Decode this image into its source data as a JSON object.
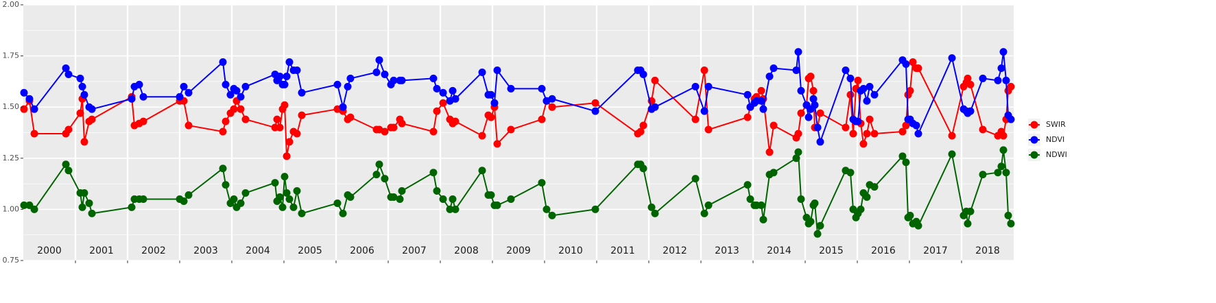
{
  "chart_data": {
    "type": "line",
    "xlim": [
      2000,
      2019
    ],
    "xticks": [
      2001,
      2002,
      2003,
      2004,
      2005,
      2006,
      2007,
      2008,
      2009,
      2010,
      2011,
      2012,
      2013,
      2014,
      2015,
      2016,
      2017,
      2018
    ],
    "year_labels": [
      "2000",
      "2001",
      "2002",
      "2003",
      "2004",
      "2005",
      "2006",
      "2007",
      "2008",
      "2009",
      "2010",
      "2011",
      "2012",
      "2013",
      "2014",
      "2015",
      "2016",
      "2017",
      "2018"
    ],
    "ylim": [
      0.75,
      2.0
    ],
    "yticks": [
      {
        "value": 0.75,
        "label": "0.75"
      },
      {
        "value": 1.0,
        "label": "1.00"
      },
      {
        "value": 1.25,
        "label": "1.25"
      },
      {
        "value": 1.5,
        "label": "1.50"
      },
      {
        "value": 1.75,
        "label": "1.75"
      },
      {
        "value": 2.0,
        "label": "2.00"
      }
    ],
    "grid": true,
    "legend": "right",
    "x": [
      2000.013,
      2000.118,
      2000.211,
      2000.816,
      2000.868,
      2001.092,
      2001.132,
      2001.171,
      2001.263,
      2001.316,
      2002.079,
      2002.132,
      2002.224,
      2002.303,
      2003.0,
      2003.079,
      2003.171,
      2003.829,
      2003.882,
      2003.974,
      2004.039,
      2004.092,
      2004.171,
      2004.263,
      2004.829,
      2004.868,
      2004.921,
      2004.974,
      2005.013,
      2005.053,
      2005.105,
      2005.184,
      2005.25,
      2005.342,
      2006.026,
      2006.132,
      2006.224,
      2006.276,
      2006.776,
      2006.829,
      2006.934,
      2007.053,
      2007.105,
      2007.224,
      2007.263,
      2007.868,
      2007.934,
      2008.053,
      2008.184,
      2008.237,
      2008.289,
      2008.803,
      2008.921,
      2008.974,
      2009.039,
      2009.092,
      2009.355,
      2009.947,
      2010.039,
      2010.145,
      2010.974,
      2011.789,
      2011.842,
      2011.895,
      2012.053,
      2012.118,
      2012.895,
      2013.066,
      2013.145,
      2013.895,
      2013.947,
      2014.026,
      2014.066,
      2014.158,
      2014.197,
      2014.316,
      2014.395,
      2014.829,
      2014.868,
      2014.921,
      2015.026,
      2015.066,
      2015.105,
      2015.158,
      2015.184,
      2015.237,
      2015.289,
      2015.776,
      2015.868,
      2015.921,
      2015.974,
      2016.013,
      2016.066,
      2016.118,
      2016.184,
      2016.237,
      2016.329,
      2016.868,
      2016.934,
      2016.974,
      2017.013,
      2017.066,
      2017.132,
      2017.171,
      2017.816,
      2018.039,
      2018.092,
      2018.118,
      2018.171,
      2018.408,
      2018.697,
      2018.763,
      2018.803,
      2018.855,
      2018.895,
      2018.947
    ],
    "series": [
      {
        "name": "SWIR",
        "color": "#ff0000",
        "values": [
          1.49,
          1.53,
          1.37,
          1.37,
          1.39,
          1.47,
          1.54,
          1.33,
          1.43,
          1.44,
          1.55,
          1.41,
          1.42,
          1.43,
          1.53,
          1.53,
          1.41,
          1.38,
          1.43,
          1.47,
          1.49,
          1.53,
          1.49,
          1.44,
          1.4,
          1.44,
          1.4,
          1.49,
          1.51,
          1.26,
          1.33,
          1.38,
          1.37,
          1.46,
          1.49,
          1.48,
          1.44,
          1.45,
          1.39,
          1.39,
          1.38,
          1.4,
          1.4,
          1.44,
          1.42,
          1.38,
          1.48,
          1.52,
          1.44,
          1.42,
          1.43,
          1.36,
          1.46,
          1.45,
          1.5,
          1.32,
          1.39,
          1.44,
          1.53,
          1.5,
          1.52,
          1.37,
          1.38,
          1.41,
          1.53,
          1.63,
          1.44,
          1.68,
          1.39,
          1.45,
          1.5,
          1.54,
          1.55,
          1.58,
          1.54,
          1.28,
          1.41,
          1.35,
          1.37,
          1.47,
          1.51,
          1.64,
          1.65,
          1.58,
          1.4,
          1.4,
          1.47,
          1.4,
          1.56,
          1.37,
          1.59,
          1.63,
          1.42,
          1.32,
          1.37,
          1.44,
          1.37,
          1.38,
          1.41,
          1.56,
          1.58,
          1.72,
          1.69,
          1.69,
          1.36,
          1.6,
          1.62,
          1.64,
          1.61,
          1.39,
          1.36,
          1.38,
          1.36,
          1.44,
          1.58,
          1.6
        ]
      },
      {
        "name": "NDVI",
        "color": "#0000ff",
        "values": [
          1.57,
          1.54,
          1.49,
          1.69,
          1.66,
          1.64,
          1.6,
          1.56,
          1.5,
          1.49,
          1.54,
          1.6,
          1.61,
          1.55,
          1.55,
          1.6,
          1.57,
          1.72,
          1.61,
          1.56,
          1.59,
          1.58,
          1.55,
          1.6,
          1.66,
          1.63,
          1.65,
          1.61,
          1.61,
          1.65,
          1.72,
          1.68,
          1.68,
          1.57,
          1.61,
          1.5,
          1.6,
          1.64,
          1.67,
          1.73,
          1.66,
          1.61,
          1.63,
          1.63,
          1.63,
          1.64,
          1.59,
          1.57,
          1.53,
          1.58,
          1.54,
          1.67,
          1.56,
          1.56,
          1.52,
          1.68,
          1.59,
          1.59,
          1.53,
          1.54,
          1.48,
          1.68,
          1.68,
          1.66,
          1.49,
          1.5,
          1.6,
          1.48,
          1.6,
          1.56,
          1.5,
          1.52,
          1.53,
          1.53,
          1.49,
          1.65,
          1.69,
          1.68,
          1.77,
          1.58,
          1.51,
          1.45,
          1.49,
          1.54,
          1.51,
          1.4,
          1.33,
          1.68,
          1.64,
          1.44,
          1.43,
          1.43,
          1.58,
          1.59,
          1.53,
          1.6,
          1.56,
          1.73,
          1.71,
          1.44,
          1.44,
          1.42,
          1.41,
          1.37,
          1.74,
          1.49,
          1.48,
          1.47,
          1.48,
          1.64,
          1.63,
          1.69,
          1.77,
          1.63,
          1.46,
          1.44
        ]
      },
      {
        "name": "NDWI",
        "color": "#006400",
        "values": [
          1.02,
          1.02,
          1.0,
          1.22,
          1.19,
          1.08,
          1.01,
          1.08,
          1.03,
          0.98,
          1.01,
          1.05,
          1.05,
          1.05,
          1.05,
          1.04,
          1.07,
          1.2,
          1.12,
          1.03,
          1.05,
          1.01,
          1.03,
          1.08,
          1.13,
          1.04,
          1.06,
          1.01,
          1.16,
          1.08,
          1.05,
          1.01,
          1.09,
          0.98,
          1.03,
          0.98,
          1.07,
          1.06,
          1.17,
          1.22,
          1.15,
          1.06,
          1.06,
          1.05,
          1.09,
          1.18,
          1.09,
          1.05,
          1.0,
          1.05,
          1.0,
          1.19,
          1.07,
          1.07,
          1.02,
          1.02,
          1.05,
          1.13,
          1.0,
          0.97,
          1.0,
          1.22,
          1.22,
          1.2,
          1.01,
          0.98,
          1.15,
          0.98,
          1.02,
          1.12,
          1.05,
          1.02,
          1.02,
          1.02,
          0.95,
          1.17,
          1.18,
          1.25,
          1.28,
          1.05,
          0.96,
          0.93,
          0.94,
          1.02,
          1.03,
          0.88,
          0.92,
          1.19,
          1.18,
          1.0,
          0.96,
          0.98,
          1.0,
          1.08,
          1.06,
          1.12,
          1.11,
          1.26,
          1.23,
          0.96,
          0.97,
          0.93,
          0.94,
          0.92,
          1.27,
          0.97,
          0.99,
          0.93,
          0.99,
          1.17,
          1.18,
          1.21,
          1.29,
          1.18,
          0.97,
          0.93
        ]
      }
    ]
  }
}
